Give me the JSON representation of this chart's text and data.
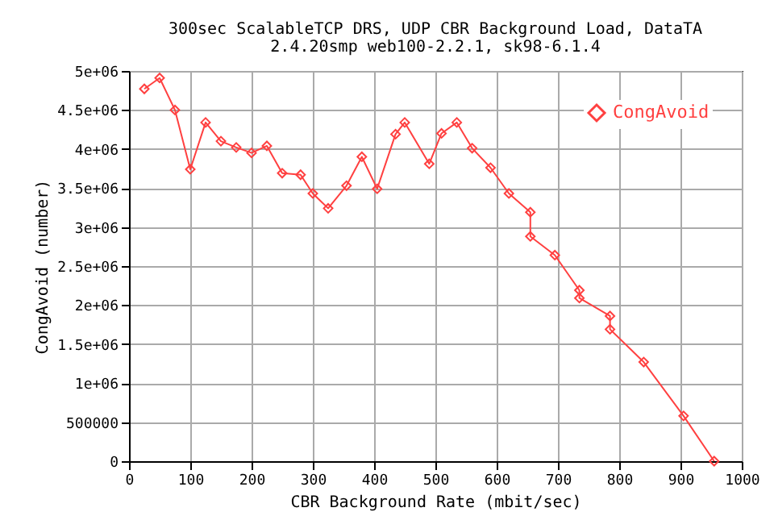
{
  "chart_data": {
    "type": "line",
    "title": "300sec ScalableTCP DRS, UDP CBR Background Load, DataTA",
    "subtitle": "2.4.20smp web100-2.2.1, sk98-6.1.4",
    "xlabel": "CBR Background Rate (mbit/sec)",
    "ylabel": "CongAvoid (number)",
    "x": [
      25,
      50,
      75,
      100,
      125,
      150,
      175,
      200,
      225,
      250,
      280,
      300,
      325,
      355,
      380,
      405,
      435,
      450,
      490,
      510,
      535,
      560,
      590,
      620,
      655,
      655,
      695,
      735,
      735,
      785,
      785,
      840,
      905,
      955
    ],
    "series": [
      {
        "name": "CongAvoid",
        "color": "#ff4040",
        "values": [
          4770000,
          4910000,
          4500000,
          3740000,
          4340000,
          4100000,
          4020000,
          3950000,
          4040000,
          3690000,
          3670000,
          3430000,
          3240000,
          3530000,
          3900000,
          3490000,
          4190000,
          4340000,
          3810000,
          4200000,
          4340000,
          4010000,
          3760000,
          3430000,
          3190000,
          2880000,
          2640000,
          2190000,
          2090000,
          1860000,
          1690000,
          1270000,
          580000,
          0
        ]
      }
    ],
    "xlim": [
      0,
      1000
    ],
    "xticks": [
      0,
      100,
      200,
      300,
      400,
      500,
      600,
      700,
      800,
      900,
      1000
    ],
    "ylim": [
      0,
      5000000
    ],
    "yticks": [
      0,
      500000,
      {
        "value": 1000000,
        "label": "1e+06"
      },
      {
        "value": 1500000,
        "label": "1.5e+06"
      },
      {
        "value": 2000000,
        "label": "2e+06"
      },
      {
        "value": 2500000,
        "label": "2.5e+06"
      },
      {
        "value": 3000000,
        "label": "3e+06"
      },
      {
        "value": 3500000,
        "label": "3.5e+06"
      },
      {
        "value": 4000000,
        "label": "4e+06"
      },
      {
        "value": 4500000,
        "label": "4.5e+06"
      },
      {
        "value": 5000000,
        "label": "5e+06"
      }
    ],
    "grid": true,
    "legend": "top right",
    "marker": "diamond",
    "line_style": "solid"
  }
}
